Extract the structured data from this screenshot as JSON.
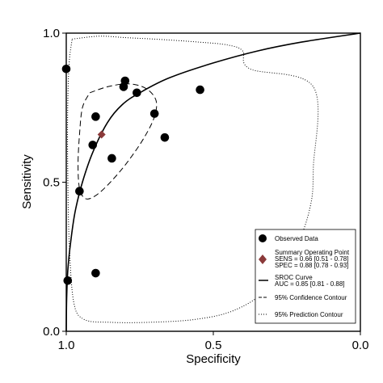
{
  "chart_data": {
    "type": "scatter",
    "xlabel": "Specificity",
    "ylabel": "Sensitivity",
    "x_reversed": true,
    "xlim": [
      1.0,
      0.0
    ],
    "ylim": [
      0.0,
      1.0
    ],
    "x_ticks": [
      {
        "value": 1.0,
        "label": "1.0"
      },
      {
        "value": 0.5,
        "label": "0.5"
      },
      {
        "value": 0.0,
        "label": "0.0"
      }
    ],
    "y_ticks": [
      {
        "value": 1.0,
        "label": "1.0"
      },
      {
        "value": 0.5,
        "label": "0.5"
      },
      {
        "value": 0.0,
        "label": "0.0"
      }
    ],
    "grid": false,
    "legend_position": "bottom-right",
    "observed_data": {
      "name": "Observed Data",
      "color": "#000000",
      "points": [
        {
          "specificity": 1.0,
          "sensitivity": 0.88
        },
        {
          "specificity": 0.8,
          "sensitivity": 0.84
        },
        {
          "specificity": 0.805,
          "sensitivity": 0.82
        },
        {
          "specificity": 0.76,
          "sensitivity": 0.8
        },
        {
          "specificity": 0.545,
          "sensitivity": 0.81
        },
        {
          "specificity": 0.7,
          "sensitivity": 0.73
        },
        {
          "specificity": 0.9,
          "sensitivity": 0.72
        },
        {
          "specificity": 0.91,
          "sensitivity": 0.625
        },
        {
          "specificity": 0.845,
          "sensitivity": 0.58
        },
        {
          "specificity": 0.665,
          "sensitivity": 0.65
        },
        {
          "specificity": 0.955,
          "sensitivity": 0.47
        },
        {
          "specificity": 0.995,
          "sensitivity": 0.17
        },
        {
          "specificity": 0.9,
          "sensitivity": 0.195
        }
      ]
    },
    "summary_point": {
      "name": "Summary Operating Point",
      "sens_text": "SENS = 0.66 [0.51 - 0.78]",
      "spec_text": "SPEC = 0.88 [0.78 - 0.93]",
      "specificity": 0.88,
      "sensitivity": 0.66,
      "color": "#8b3a3a"
    },
    "sroc_curve": {
      "name": "SROC Curve",
      "auc_text": "AUC = 0.85 [0.81 - 0.88]",
      "points": [
        [
          1.0,
          0.0
        ],
        [
          0.999,
          0.1
        ],
        [
          0.995,
          0.2
        ],
        [
          0.985,
          0.3
        ],
        [
          0.97,
          0.4
        ],
        [
          0.945,
          0.5
        ],
        [
          0.91,
          0.6
        ],
        [
          0.86,
          0.7
        ],
        [
          0.81,
          0.76
        ],
        [
          0.75,
          0.8
        ],
        [
          0.65,
          0.85
        ],
        [
          0.5,
          0.9
        ],
        [
          0.35,
          0.94
        ],
        [
          0.2,
          0.97
        ],
        [
          0.0,
          1.0
        ]
      ]
    },
    "confidence_contour": {
      "name": "95% Confidence Contour",
      "points": [
        [
          0.92,
          0.8
        ],
        [
          0.86,
          0.82
        ],
        [
          0.79,
          0.83
        ],
        [
          0.73,
          0.815
        ],
        [
          0.695,
          0.775
        ],
        [
          0.7,
          0.72
        ],
        [
          0.735,
          0.65
        ],
        [
          0.79,
          0.57
        ],
        [
          0.85,
          0.5
        ],
        [
          0.9,
          0.455
        ],
        [
          0.935,
          0.445
        ],
        [
          0.955,
          0.48
        ],
        [
          0.96,
          0.56
        ],
        [
          0.955,
          0.66
        ],
        [
          0.945,
          0.75
        ],
        [
          0.92,
          0.8
        ]
      ]
    },
    "prediction_contour": {
      "name": "95% Prediction Contour",
      "points": [
        [
          0.98,
          0.98
        ],
        [
          0.94,
          0.985
        ],
        [
          0.88,
          0.99
        ],
        [
          0.8,
          0.985
        ],
        [
          0.7,
          0.98
        ],
        [
          0.55,
          0.97
        ],
        [
          0.45,
          0.96
        ],
        [
          0.4,
          0.94
        ],
        [
          0.375,
          0.88
        ],
        [
          0.16,
          0.82
        ],
        [
          0.16,
          0.55
        ],
        [
          0.17,
          0.42
        ],
        [
          0.22,
          0.28
        ],
        [
          0.32,
          0.14
        ],
        [
          0.43,
          0.07
        ],
        [
          0.56,
          0.04
        ],
        [
          0.72,
          0.03
        ],
        [
          0.85,
          0.03
        ],
        [
          0.94,
          0.04
        ],
        [
          0.975,
          0.1
        ],
        [
          0.99,
          0.3
        ],
        [
          0.995,
          0.55
        ],
        [
          0.995,
          0.75
        ],
        [
          0.99,
          0.9
        ],
        [
          0.98,
          0.98
        ]
      ]
    }
  }
}
